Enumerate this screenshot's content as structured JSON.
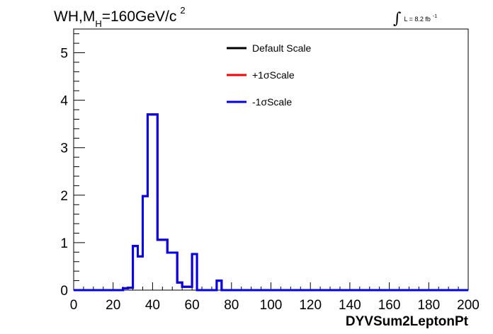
{
  "title": {
    "prefix": "WH,M",
    "subscript": "H",
    "suffix": "=160GeV/c",
    "superscript": "2"
  },
  "luminosity": {
    "integral_symbol": "∫",
    "text": "L = 8.2 fb",
    "superscript": "-1"
  },
  "chart_data": {
    "type": "line",
    "histogram": true,
    "xlabel": "DYVSum2LeptonPt",
    "ylabel": "",
    "xlim": [
      0,
      200
    ],
    "ylim": [
      0,
      5.5
    ],
    "x_ticks": [
      "0",
      "20",
      "40",
      "60",
      "80",
      "100",
      "120",
      "140",
      "160",
      "180",
      "200"
    ],
    "y_ticks": [
      "0",
      "1",
      "2",
      "3",
      "4",
      "5"
    ],
    "legend_position": "top-center",
    "bin_edges": [
      0,
      25,
      27.5,
      30,
      32.5,
      35,
      37.5,
      40,
      42.5,
      45,
      47.5,
      50,
      52.5,
      55,
      57.5,
      60,
      62.5,
      65,
      67.5,
      70,
      72.5,
      75,
      77.5,
      200
    ],
    "series": [
      {
        "name": "Default Scale",
        "color": "#000000",
        "values": [
          0,
          0.04,
          0.05,
          0.93,
          0.71,
          1.98,
          3.7,
          3.7,
          1.06,
          1.06,
          0.79,
          0.79,
          0.16,
          0.07,
          0.07,
          0.76,
          0,
          0,
          0,
          0,
          0.2,
          0,
          0
        ]
      },
      {
        "name": "+1σScale",
        "color": "#ff0000",
        "values": [
          0,
          0.04,
          0.05,
          0.93,
          0.71,
          1.98,
          3.7,
          3.7,
          1.06,
          1.06,
          0.79,
          0.79,
          0.16,
          0.07,
          0.07,
          0.76,
          0,
          0,
          0,
          0,
          0.2,
          0,
          0
        ]
      },
      {
        "name": "-1σScale",
        "color": "#0000ee",
        "values": [
          0,
          0.04,
          0.05,
          0.93,
          0.71,
          1.98,
          3.7,
          3.7,
          1.06,
          1.06,
          0.79,
          0.79,
          0.16,
          0.07,
          0.07,
          0.76,
          0,
          0,
          0,
          0,
          0.2,
          0,
          0
        ]
      }
    ]
  }
}
